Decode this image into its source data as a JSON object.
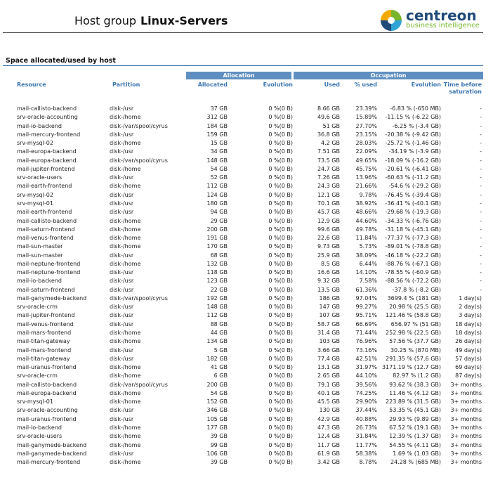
{
  "header": {
    "label": "Host group",
    "value": "Linux-Servers"
  },
  "logo": {
    "name": "centreon",
    "tagline": "business intelligence"
  },
  "section_title": "Space allocated/used by host",
  "table": {
    "groups": [
      {
        "label": "Allocation"
      },
      {
        "label": "Occupation"
      }
    ],
    "columns": [
      "Resource",
      "Partition",
      "Allocated",
      "Evolution",
      "Used",
      "% used",
      "Evolution",
      "Time before saturation"
    ],
    "rows": [
      [
        "mail-callisto-backend",
        "disk-/usr",
        "37 GB",
        "0 %(0 B)",
        "8.66 GB",
        "23.39%",
        "-6.83 % (-650 MB)",
        "-"
      ],
      [
        "srv-oracle-accounting",
        "disk-/home",
        "312 GB",
        "0 %(0 B)",
        "49.6 GB",
        "15.89%",
        "-11.15 % (-6.22 GB)",
        "-"
      ],
      [
        "mail-io-backend",
        "disk-/var/spool/cyrus",
        "184 GB",
        "0 %(0 B)",
        "51 GB",
        "27.70%",
        "-6.25 % (-3.4 GB)",
        "-"
      ],
      [
        "mail-mercury-frontend",
        "disk-/usr",
        "159 GB",
        "0 %(0 B)",
        "36.8 GB",
        "23.15%",
        "-20.38 % (-9.42 GB)",
        "-"
      ],
      [
        "srv-mysql-02",
        "disk-/home",
        "15 GB",
        "0 %(0 B)",
        "4.2 GB",
        "28.03%",
        "-25.72 % (-1.46 GB)",
        "-"
      ],
      [
        "mail-europa-backend",
        "disk-/usr",
        "34 GB",
        "0 %(0 B)",
        "7.51 GB",
        "22.09%",
        "-34.19 % (-3.9 GB)",
        "-"
      ],
      [
        "mail-europa-backend",
        "disk-/var/spool/cyrus",
        "148 GB",
        "0 %(0 B)",
        "73.5 GB",
        "49.65%",
        "-18.09 % (-16.2 GB)",
        "-"
      ],
      [
        "mail-jupiter-frontend",
        "disk-/home",
        "54 GB",
        "0 %(0 B)",
        "24.7 GB",
        "45.75%",
        "-20.61 % (-6.41 GB)",
        "-"
      ],
      [
        "srv-oracle-users",
        "disk-/usr",
        "52 GB",
        "0 %(0 B)",
        "7.26 GB",
        "13.96%",
        "-60.63 % (-11.2 GB)",
        "-"
      ],
      [
        "mail-earth-frontend",
        "disk-/home",
        "112 GB",
        "0 %(0 B)",
        "24.3 GB",
        "21.66%",
        "-54.6 % (-29.2 GB)",
        "-"
      ],
      [
        "srv-mysql-02",
        "disk-/usr",
        "124 GB",
        "0 %(0 B)",
        "12.1 GB",
        "9.78%",
        "-76.45 % (-39.4 GB)",
        "-"
      ],
      [
        "srv-mysql-01",
        "disk-/usr",
        "180 GB",
        "0 %(0 B)",
        "70.1 GB",
        "38.92%",
        "-36.41 % (-40.1 GB)",
        "-"
      ],
      [
        "mail-earth-frontend",
        "disk-/usr",
        "94 GB",
        "0 %(0 B)",
        "45.7 GB",
        "48.66%",
        "-29.68 % (-19.3 GB)",
        "-"
      ],
      [
        "mail-callisto-backend",
        "disk-/home",
        "29 GB",
        "0 %(0 B)",
        "12.9 GB",
        "44.60%",
        "-34.33 % (-6.76 GB)",
        "-"
      ],
      [
        "mail-saturn-frontend",
        "disk-/home",
        "200 GB",
        "0 %(0 B)",
        "99.6 GB",
        "49.78%",
        "-31.18 % (-45.1 GB)",
        "-"
      ],
      [
        "mail-venus-frontend",
        "disk-/home",
        "191 GB",
        "0 %(0 B)",
        "22.6 GB",
        "11.84%",
        "-77.37 % (-77.3 GB)",
        "-"
      ],
      [
        "mail-sun-master",
        "disk-/home",
        "170 GB",
        "0 %(0 B)",
        "9.73 GB",
        "5.73%",
        "-89.01 % (-78.8 GB)",
        "-"
      ],
      [
        "mail-sun-master",
        "disk-/usr",
        "68 GB",
        "0 %(0 B)",
        "25.9 GB",
        "38.09%",
        "-46.18 % (-22.2 GB)",
        "-"
      ],
      [
        "mail-neptune-frontend",
        "disk-/home",
        "132 GB",
        "0 %(0 B)",
        "8.5 GB",
        "6.44%",
        "-88.76 % (-67.1 GB)",
        "-"
      ],
      [
        "mail-neptune-frontend",
        "disk-/usr",
        "118 GB",
        "0 %(0 B)",
        "16.6 GB",
        "14.10%",
        "-78.55 % (-60.9 GB)",
        "-"
      ],
      [
        "mail-io-backend",
        "disk-/usr",
        "123 GB",
        "0 %(0 B)",
        "9.32 GB",
        "7.58%",
        "-88.56 % (-72.2 GB)",
        "-"
      ],
      [
        "mail-saturn-frontend",
        "disk-/usr",
        "22 GB",
        "0 %(0 B)",
        "13.5 GB",
        "61.36%",
        "-37.8 % (-8.2 GB)",
        "-"
      ],
      [
        "mail-ganymede-backend",
        "disk-/var/spool/cyrus",
        "192 GB",
        "0 %(0 B)",
        "186 GB",
        "97.04%",
        "3699.4 % (181 GB)",
        "1 day(s)"
      ],
      [
        "srv-oracle-crm",
        "disk-/usr",
        "148 GB",
        "0 %(0 B)",
        "147 GB",
        "99.27%",
        "20.98 % (25.5 GB)",
        "2 day(s)"
      ],
      [
        "mail-jupiter-frontend",
        "disk-/usr",
        "112 GB",
        "0 %(0 B)",
        "107 GB",
        "95.71%",
        "121.46 % (58.8 GB)",
        "3 day(s)"
      ],
      [
        "mail-venus-frontend",
        "disk-/usr",
        "88 GB",
        "0 %(0 B)",
        "58.7 GB",
        "66.69%",
        "656.97 % (51 GB)",
        "18 day(s)"
      ],
      [
        "mail-mars-frontend",
        "disk-/home",
        "44 GB",
        "0 %(0 B)",
        "31.4 GB",
        "71.44%",
        "252.98 % (22.5 GB)",
        "18 day(s)"
      ],
      [
        "mail-titan-gateway",
        "disk-/home",
        "134 GB",
        "0 %(0 B)",
        "103 GB",
        "76.96%",
        "57.56 % (37.7 GB)",
        "26 day(s)"
      ],
      [
        "mail-mars-frontend",
        "disk-/usr",
        "5 GB",
        "0 %(0 B)",
        "3.66 GB",
        "73.16%",
        "30.25 % (870 MB)",
        "49 day(s)"
      ],
      [
        "mail-titan-gateway",
        "disk-/usr",
        "182 GB",
        "0 %(0 B)",
        "77.4 GB",
        "42.51%",
        "291.35 % (57.6 GB)",
        "57 day(s)"
      ],
      [
        "mail-uranus-frontend",
        "disk-/home",
        "41 GB",
        "0 %(0 B)",
        "13.1 GB",
        "31.97%",
        "3171.19 % (12.7 GB)",
        "69 day(s)"
      ],
      [
        "srv-oracle-crm",
        "disk-/home",
        "6 GB",
        "0 %(0 B)",
        "2.65 GB",
        "44.10%",
        "82.97 % (1.2 GB)",
        "87 day(s)"
      ],
      [
        "mail-callisto-backend",
        "disk-/var/spool/cyrus",
        "200 GB",
        "0 %(0 B)",
        "79.1 GB",
        "39.56%",
        "93.62 % (38.3 GB)",
        "3+ months"
      ],
      [
        "mail-europa-backend",
        "disk-/home",
        "54 GB",
        "0 %(0 B)",
        "40.1 GB",
        "74.25%",
        "11.46 % (4.12 GB)",
        "3+ months"
      ],
      [
        "srv-mysql-01",
        "disk-/home",
        "152 GB",
        "0 %(0 B)",
        "45.5 GB",
        "29.90%",
        "223.89 % (31.5 GB)",
        "3+ months"
      ],
      [
        "srv-oracle-accounting",
        "disk-/usr",
        "346 GB",
        "0 %(0 B)",
        "130 GB",
        "37.44%",
        "53.35 % (45.1 GB)",
        "3+ months"
      ],
      [
        "mail-uranus-frontend",
        "disk-/usr",
        "105 GB",
        "0 %(0 B)",
        "42.9 GB",
        "40.88%",
        "29.93 % (9.89 GB)",
        "3+ months"
      ],
      [
        "mail-io-backend",
        "disk-/home",
        "177 GB",
        "0 %(0 B)",
        "47.3 GB",
        "26.73%",
        "67.52 % (19.1 GB)",
        "3+ months"
      ],
      [
        "srv-oracle-users",
        "disk-/home",
        "39 GB",
        "0 %(0 B)",
        "12.4 GB",
        "31.84%",
        "12.39 % (1.37 GB)",
        "3+ months"
      ],
      [
        "mail-ganymede-backend",
        "disk-/home",
        "99 GB",
        "0 %(0 B)",
        "11.7 GB",
        "11.77%",
        "54.55 % (4.11 GB)",
        "3+ months"
      ],
      [
        "mail-ganymede-backend",
        "disk-/usr",
        "106 GB",
        "0 %(0 B)",
        "61.9 GB",
        "58.38%",
        "1.69 % (1.03 GB)",
        "3+ months"
      ],
      [
        "mail-mercury-frontend",
        "disk-/home",
        "39 GB",
        "0 %(0 B)",
        "3.42 GB",
        "8.78%",
        "24.28 % (685 MB)",
        "3+ months"
      ]
    ]
  }
}
